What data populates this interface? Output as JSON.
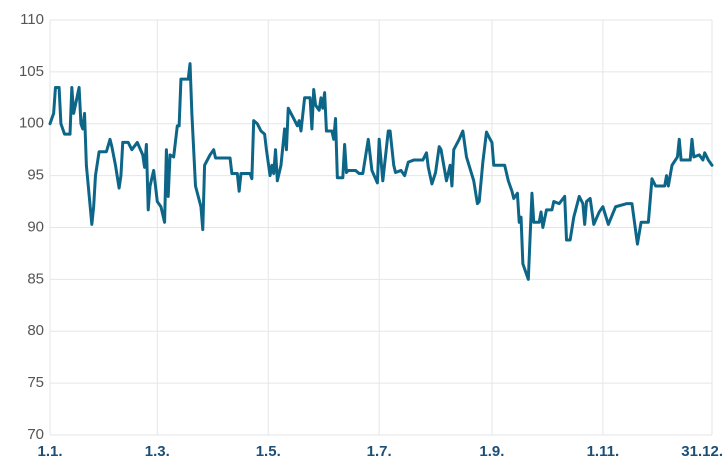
{
  "chart_data": {
    "type": "line",
    "x": [
      "1.1.",
      "3.1.",
      "4.1.",
      "6.1.",
      "7.1.",
      "9.1.",
      "12.1.",
      "13.1.",
      "14.1.",
      "17.1.",
      "18.1.",
      "19.1.",
      "20.1.",
      "21.1.",
      "24.1.",
      "25.1.",
      "26.1.",
      "28.1.",
      "1.2.",
      "3.2.",
      "4.2.",
      "6.2.",
      "8.2.",
      "9.2.",
      "10.2.",
      "13.2.",
      "15.2.",
      "18.2.",
      "21.2.",
      "22.2.",
      "23.2.",
      "24.2.",
      "25.2.",
      "27.2.",
      "1.3.",
      "3.3.",
      "5.3.",
      "6.3.",
      "7.3.",
      "8.3.",
      "10.3.",
      "12.3.",
      "13.3.",
      "14.3.",
      "18.3.",
      "19.3.",
      "20.3.",
      "22.3.",
      "25.3.",
      "26.3.",
      "27.3.",
      "30.3.",
      "1.4.",
      "2.4.",
      "10.4.",
      "11.4.",
      "14.4.",
      "15.4.",
      "16.4.",
      "21.4.",
      "22.4.",
      "23.4.",
      "25.4.",
      "27.4.",
      "29.4.",
      "30.4.",
      "2.5.",
      "3.5.",
      "4.5.",
      "5.5.",
      "6.5.",
      "8.5.",
      "10.5.",
      "11.5.",
      "12.5.",
      "15.5.",
      "17.5.",
      "18.5.",
      "19.5.",
      "21.5.",
      "24.5.",
      "25.5.",
      "26.5.",
      "27.5.",
      "29.5.",
      "30.5.",
      "31.5.",
      "1.6.",
      "2.6.",
      "5.6.",
      "6.6.",
      "7.6.",
      "8.6.",
      "11.6.",
      "12.6.",
      "13.6.",
      "14.6.",
      "18.6.",
      "20.6.",
      "22.6.",
      "25.6.",
      "27.6.",
      "30.6.",
      "1.7.",
      "3.7.",
      "6.7.",
      "7.7.",
      "9.7.",
      "10.7.",
      "13.7.",
      "15.7.",
      "17.7.",
      "20.7.",
      "25.7.",
      "27.7.",
      "28.7.",
      "30.7.",
      "1.8.",
      "3.8.",
      "4.8.",
      "7.8.",
      "9.8.",
      "10.8.",
      "11.8.",
      "14.8.",
      "16.8.",
      "18.8.",
      "22.8.",
      "24.8.",
      "25.8.",
      "27.8.",
      "29.8.",
      "31.8.",
      "1.9.",
      "2.9.",
      "8.9.",
      "10.9.",
      "12.9.",
      "13.9.",
      "15.9.",
      "16.9.",
      "17.9.",
      "18.9.",
      "21.9.",
      "23.9.",
      "24.9.",
      "27.9.",
      "28.9.",
      "29.9.",
      "1.10.",
      "4.10.",
      "5.10.",
      "8.10.",
      "11.10.",
      "12.10.",
      "14.10.",
      "16.10.",
      "19.10.",
      "21.10.",
      "22.10.",
      "23.10.",
      "25.10.",
      "27.10.",
      "30.10.",
      "1.11.",
      "4.11.",
      "8.11.",
      "14.11.",
      "17.11.",
      "20.11.",
      "22.11.",
      "26.11.",
      "28.11.",
      "30.11.",
      "5.12.",
      "6.12.",
      "7.12.",
      "9.12.",
      "12.12.",
      "13.12.",
      "14.12.",
      "19.12.",
      "20.12.",
      "21.12.",
      "24.12.",
      "26.12.",
      "27.12.",
      "29.12.",
      "31.12."
    ],
    "series": [
      {
        "color": "#0d6688",
        "values": [
          100,
          101,
          103.5,
          103.5,
          100,
          99,
          99,
          103.5,
          101,
          103.5,
          100,
          99.5,
          101,
          96,
          90.3,
          92,
          95,
          97.3,
          97.3,
          98.5,
          97.8,
          96,
          93.8,
          95,
          98.2,
          98.2,
          97.5,
          98.2,
          97,
          95.8,
          98,
          91.7,
          94,
          95.5,
          92.5,
          92,
          90.5,
          97.5,
          93,
          97,
          96.8,
          99.8,
          99.8,
          104.3,
          104.3,
          105.8,
          101,
          94,
          92,
          89.8,
          96,
          97,
          97.5,
          96.7,
          96.7,
          95.2,
          95.2,
          93.5,
          95.2,
          95.2,
          94.7,
          100.3,
          100,
          99.3,
          99,
          97.5,
          95,
          96,
          95.2,
          97.5,
          94.5,
          96,
          99.5,
          97.5,
          101.5,
          100.5,
          99.8,
          100.3,
          99.3,
          102.5,
          102.5,
          99.5,
          103.3,
          101.8,
          101.3,
          102.5,
          101.5,
          103,
          99.3,
          99.3,
          98.5,
          100.5,
          94.8,
          94.8,
          98,
          95.3,
          95.5,
          95.5,
          95.2,
          95.2,
          98.5,
          95.5,
          94.3,
          98.5,
          94.5,
          99.3,
          99.3,
          96,
          95.3,
          95.5,
          95,
          96.3,
          96.5,
          96.5,
          97.2,
          95.8,
          94.2,
          95.3,
          97.8,
          97.5,
          94.5,
          96,
          94,
          97.5,
          98.5,
          99.3,
          96.8,
          94.5,
          92.3,
          92.5,
          96.3,
          99.2,
          98.5,
          98.2,
          96,
          96,
          94.5,
          93.5,
          92.8,
          93.3,
          90.5,
          91,
          86.5,
          85,
          93.3,
          90.5,
          90.5,
          91.5,
          90,
          91.7,
          91.7,
          92.5,
          92.3,
          93,
          88.8,
          88.8,
          91,
          93,
          92.3,
          90.3,
          92.5,
          92.8,
          90.3,
          91.5,
          92,
          90.3,
          92,
          92.3,
          92.3,
          88.4,
          90.5,
          90.5,
          94.7,
          94,
          94,
          95,
          94,
          96,
          96.8,
          98.5,
          96.5,
          96.5,
          98.5,
          96.8,
          97,
          96.5,
          97.2,
          96.5,
          96
        ]
      }
    ],
    "xlim": [
      "1.1.",
      "31.12."
    ],
    "xticks": [
      "1.1.",
      "1.3.",
      "1.5.",
      "1.7.",
      "1.9.",
      "1.11.",
      "31.12."
    ],
    "ylim": [
      70,
      110
    ],
    "yticks": [
      70,
      75,
      80,
      85,
      90,
      95,
      100,
      105,
      110
    ],
    "grid": true
  }
}
